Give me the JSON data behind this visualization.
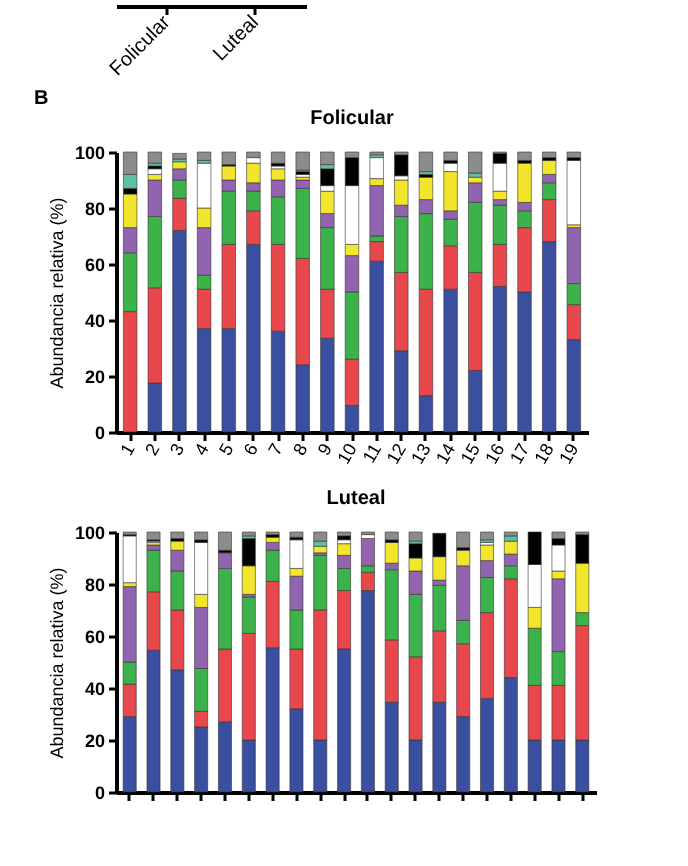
{
  "chart_data": [
    {
      "type": "other",
      "categories": [
        "Folicular",
        "Luteal"
      ]
    },
    {
      "type": "bar",
      "title": "Folicular",
      "ylabel": "Abundancia relativa (%)",
      "annotations": [
        "B"
      ],
      "stacked": true,
      "ylim": [
        0,
        100
      ],
      "yticks": [
        0,
        20,
        40,
        60,
        80,
        100
      ],
      "categories": [
        "1",
        "2",
        "3",
        "4",
        "5",
        "6",
        "7",
        "8",
        "9",
        "10",
        "11",
        "12",
        "13",
        "14",
        "15",
        "16",
        "17",
        "18",
        "19"
      ],
      "series": [
        {
          "color": "#3a4fa0",
          "values": [
            0,
            17.5,
            72,
            37,
            37,
            67,
            36,
            24,
            33.5,
            9.5,
            61,
            29,
            13,
            51,
            22,
            52,
            50,
            68,
            33
          ]
        },
        {
          "color": "#e8474b",
          "values": [
            43,
            34,
            11.5,
            14,
            30,
            12,
            31,
            38,
            17.5,
            16.5,
            7,
            28,
            38,
            15.5,
            35,
            15,
            23,
            15,
            12.5
          ]
        },
        {
          "color": "#3bb34a",
          "values": [
            21,
            25.5,
            6.5,
            5,
            19,
            7,
            17,
            25,
            22,
            24,
            2,
            20,
            27,
            9.5,
            25,
            14,
            6,
            6,
            7.5
          ]
        },
        {
          "color": "#9164b0",
          "values": [
            9,
            13,
            4,
            17,
            4,
            3,
            6,
            3,
            5,
            13,
            18,
            4,
            5,
            3,
            7,
            2,
            3,
            3,
            20
          ]
        },
        {
          "color": "#f2e52b",
          "values": [
            12,
            2,
            2.5,
            7,
            5,
            7,
            4,
            1,
            8,
            4,
            2.5,
            9,
            8,
            14,
            2,
            3,
            14,
            5,
            1
          ]
        },
        {
          "color": "#ffffff",
          "values": [
            0,
            2,
            null,
            16,
            0,
            2,
            1,
            1,
            2,
            21,
            7.5,
            1.5,
            0,
            3,
            0,
            10,
            0,
            0,
            23
          ]
        },
        {
          "color": "#000000",
          "values": [
            2,
            1,
            0,
            0,
            0.5,
            0,
            1,
            1,
            6,
            10,
            0,
            7.5,
            1,
            1,
            0,
            3.5,
            1,
            1,
            1
          ]
        },
        {
          "color": "#5fbfa4",
          "values": [
            5,
            1,
            1,
            1,
            0,
            0,
            0,
            0.5,
            1.5,
            0,
            1,
            0,
            1,
            0,
            1.5,
            0,
            0,
            0,
            0
          ]
        },
        {
          "color": "#8c8c8c",
          "values": [
            8,
            4,
            2,
            3,
            4.5,
            2,
            4,
            6.5,
            4.5,
            2,
            1,
            1,
            7,
            3,
            7.5,
            0.5,
            3,
            2,
            2
          ]
        }
      ]
    },
    {
      "type": "bar",
      "title": "Luteal",
      "ylabel": "Abundancia relativa (%)",
      "stacked": true,
      "ylim": [
        0,
        100
      ],
      "yticks": [
        0,
        20,
        40,
        60,
        80,
        100
      ],
      "categories": [
        null,
        null,
        null,
        null,
        null,
        null,
        null,
        null,
        null,
        null,
        null,
        null,
        null,
        null,
        null,
        null,
        null,
        null,
        null,
        null
      ],
      "series": [
        {
          "color": "#3a4fa0",
          "values": [
            29,
            54.5,
            47,
            25,
            27,
            20,
            55.5,
            32,
            20,
            55,
            77.5,
            34.5,
            20,
            34.5,
            29,
            36,
            44,
            20,
            20,
            20
          ]
        },
        {
          "color": "#e8474b",
          "values": [
            12.5,
            22.5,
            23,
            6,
            28,
            41,
            25.5,
            23,
            50,
            22.5,
            7,
            24,
            32,
            27.5,
            28,
            33,
            38,
            21,
            21,
            44
          ]
        },
        {
          "color": "#3bb34a",
          "values": [
            8.5,
            16,
            15,
            16.5,
            31,
            14,
            12,
            15,
            21,
            8.5,
            2.5,
            27,
            24,
            17.5,
            9,
            13.5,
            5,
            22,
            13,
            5
          ]
        },
        {
          "color": "#9164b0",
          "values": [
            29,
            2,
            8,
            23.5,
            6,
            1,
            3,
            13,
            1,
            5,
            10.5,
            2.5,
            9,
            2,
            21,
            6.5,
            4.5,
            0,
            28,
            0
          ]
        },
        {
          "color": "#f2e52b",
          "values": [
            1.5,
            1,
            3.5,
            5,
            0,
            11,
            2,
            3,
            2.5,
            4.5,
            0,
            8,
            5,
            9,
            6,
            6,
            5,
            8,
            3,
            19
          ]
        },
        {
          "color": "#ffffff",
          "values": [
            18,
            0.5,
            0,
            20,
            0,
            0,
            0,
            11,
            0,
            1.5,
            1.5,
            0,
            0,
            0,
            0,
            1,
            0,
            16.5,
            10,
            0
          ]
        },
        {
          "color": "#000000",
          "values": [
            0.5,
            0.5,
            1,
            1,
            1,
            10.5,
            1,
            1,
            0,
            1.5,
            0,
            1,
            5.5,
            9,
            1,
            0,
            0,
            12.5,
            2.5,
            11
          ]
        },
        {
          "color": "#5fbfa4",
          "values": [
            0,
            0,
            0,
            0,
            0,
            1,
            0,
            0,
            2,
            0,
            0,
            0,
            1,
            0,
            0,
            1,
            2,
            0,
            0,
            0
          ]
        },
        {
          "color": "#8c8c8c",
          "values": [
            1,
            3,
            2.5,
            3,
            7,
            1.5,
            1,
            2,
            3.5,
            1.5,
            1,
            3,
            3.5,
            0,
            6,
            3,
            1.5,
            0,
            2.5,
            1
          ]
        }
      ]
    }
  ]
}
